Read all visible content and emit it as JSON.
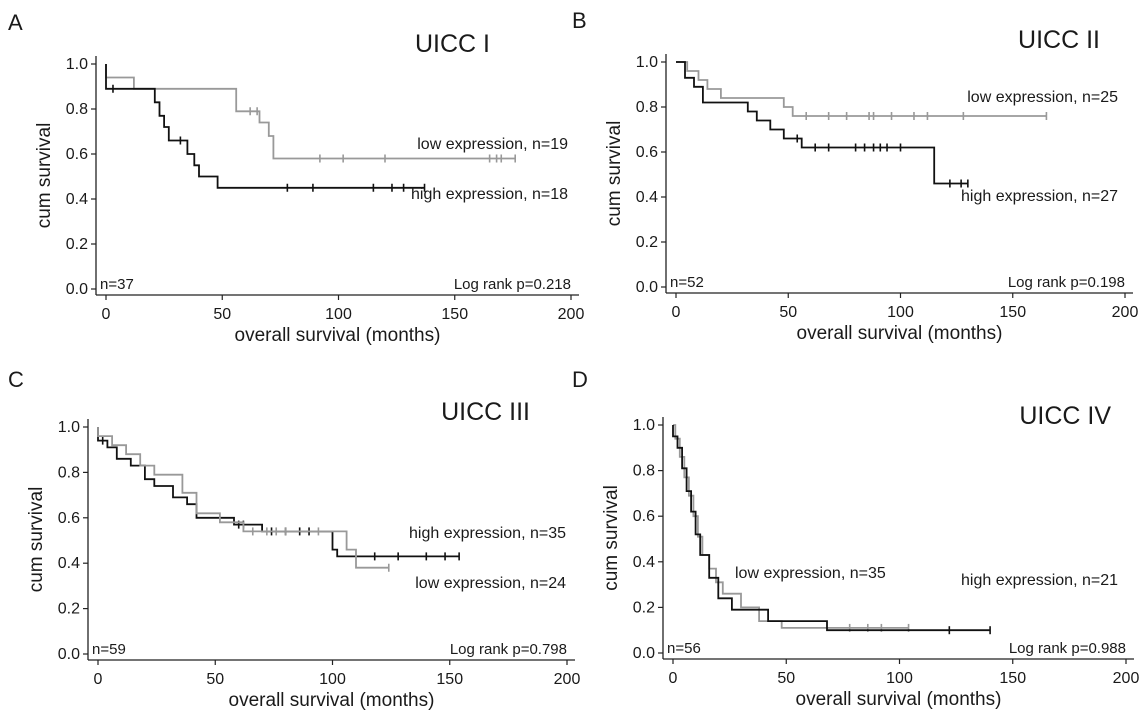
{
  "colors": {
    "high": "#111111",
    "low": "#999999",
    "axis": "#222222"
  },
  "chart_data": [
    {
      "type": "line",
      "panel": "A",
      "title": "UICC I",
      "xlabel": "overall survival (months)",
      "ylabel": "cum survival",
      "xlim": [
        0,
        200
      ],
      "ylim": [
        0,
        1
      ],
      "x_ticks": [
        0,
        50,
        100,
        150,
        200
      ],
      "x_tick_labels": [
        "0",
        "50",
        "100",
        "150",
        "200"
      ],
      "y_ticks": [
        0,
        0.2,
        0.4,
        0.6,
        0.8,
        1.0
      ],
      "y_tick_labels": [
        "0.0",
        "0.2",
        "0.4",
        "0.6",
        "0.8",
        "1.0"
      ],
      "grid": false,
      "n_label": "n=37",
      "logrank_label": "Log rank p=0.218",
      "series": [
        {
          "name": "low expression, n=19",
          "group": "low",
          "steps": [
            [
              0,
              1.0
            ],
            [
              0,
              0.94
            ],
            [
              12,
              0.94
            ],
            [
              12,
              0.89
            ],
            [
              56,
              0.89
            ],
            [
              56,
              0.79
            ],
            [
              66,
              0.79
            ],
            [
              66,
              0.74
            ],
            [
              70,
              0.74
            ],
            [
              70,
              0.68
            ],
            [
              72,
              0.68
            ],
            [
              72,
              0.58
            ],
            [
              176,
              0.58
            ]
          ],
          "censored": [
            [
              62,
              0.79
            ],
            [
              65,
              0.79
            ],
            [
              92,
              0.58
            ],
            [
              102,
              0.58
            ],
            [
              120,
              0.58
            ],
            [
              165,
              0.58
            ],
            [
              168,
              0.58
            ],
            [
              170,
              0.58
            ],
            [
              176,
              0.58
            ]
          ]
        },
        {
          "name": "high expression, n=18",
          "group": "high",
          "steps": [
            [
              0,
              1.0
            ],
            [
              0,
              0.89
            ],
            [
              21,
              0.89
            ],
            [
              21,
              0.83
            ],
            [
              23,
              0.83
            ],
            [
              23,
              0.77
            ],
            [
              25,
              0.77
            ],
            [
              25,
              0.72
            ],
            [
              27,
              0.72
            ],
            [
              27,
              0.66
            ],
            [
              35,
              0.66
            ],
            [
              35,
              0.6
            ],
            [
              38,
              0.6
            ],
            [
              38,
              0.55
            ],
            [
              40,
              0.55
            ],
            [
              40,
              0.5
            ],
            [
              48,
              0.5
            ],
            [
              48,
              0.45
            ],
            [
              137,
              0.45
            ]
          ],
          "censored": [
            [
              3,
              0.89
            ],
            [
              32,
              0.66
            ],
            [
              78,
              0.45
            ],
            [
              89,
              0.45
            ],
            [
              115,
              0.45
            ],
            [
              123,
              0.45
            ],
            [
              128,
              0.45
            ],
            [
              137,
              0.45
            ]
          ]
        }
      ]
    },
    {
      "type": "line",
      "panel": "B",
      "title": "UICC II",
      "xlabel": "overall survival (months)",
      "ylabel": "cum survival",
      "xlim": [
        0,
        200
      ],
      "ylim": [
        0,
        1
      ],
      "x_ticks": [
        0,
        50,
        100,
        150,
        200
      ],
      "x_tick_labels": [
        "0",
        "50",
        "100",
        "150",
        "200"
      ],
      "y_ticks": [
        0,
        0.2,
        0.4,
        0.6,
        0.8,
        1.0
      ],
      "y_tick_labels": [
        "0.0",
        "0.2",
        "0.4",
        "0.6",
        "0.8",
        "1.0"
      ],
      "grid": false,
      "n_label": "n=52",
      "logrank_label": "Log rank p=0.198",
      "series": [
        {
          "name": "low expression, n=25",
          "group": "low",
          "steps": [
            [
              0,
              1.0
            ],
            [
              5,
              1.0
            ],
            [
              5,
              0.96
            ],
            [
              10,
              0.96
            ],
            [
              10,
              0.92
            ],
            [
              14,
              0.92
            ],
            [
              14,
              0.88
            ],
            [
              20,
              0.88
            ],
            [
              20,
              0.84
            ],
            [
              48,
              0.84
            ],
            [
              48,
              0.8
            ],
            [
              52,
              0.8
            ],
            [
              52,
              0.76
            ],
            [
              165,
              0.76
            ]
          ],
          "censored": [
            [
              58,
              0.76
            ],
            [
              68,
              0.76
            ],
            [
              76,
              0.76
            ],
            [
              86,
              0.76
            ],
            [
              88,
              0.76
            ],
            [
              96,
              0.76
            ],
            [
              106,
              0.76
            ],
            [
              112,
              0.76
            ],
            [
              128,
              0.76
            ],
            [
              165,
              0.76
            ]
          ]
        },
        {
          "name": "high expression, n=27",
          "group": "high",
          "steps": [
            [
              0,
              1.0
            ],
            [
              4,
              1.0
            ],
            [
              4,
              0.93
            ],
            [
              8,
              0.93
            ],
            [
              8,
              0.89
            ],
            [
              12,
              0.89
            ],
            [
              12,
              0.82
            ],
            [
              32,
              0.82
            ],
            [
              32,
              0.78
            ],
            [
              36,
              0.78
            ],
            [
              36,
              0.74
            ],
            [
              42,
              0.74
            ],
            [
              42,
              0.7
            ],
            [
              48,
              0.7
            ],
            [
              48,
              0.66
            ],
            [
              56,
              0.66
            ],
            [
              56,
              0.62
            ],
            [
              115,
              0.62
            ],
            [
              115,
              0.46
            ],
            [
              130,
              0.46
            ]
          ],
          "censored": [
            [
              54,
              0.66
            ],
            [
              62,
              0.62
            ],
            [
              68,
              0.62
            ],
            [
              80,
              0.62
            ],
            [
              84,
              0.62
            ],
            [
              88,
              0.62
            ],
            [
              91,
              0.62
            ],
            [
              94,
              0.62
            ],
            [
              100,
              0.62
            ],
            [
              122,
              0.46
            ],
            [
              127,
              0.46
            ],
            [
              130,
              0.46
            ]
          ]
        }
      ]
    },
    {
      "type": "line",
      "panel": "C",
      "title": "UICC III",
      "xlabel": "overall survival (months)",
      "ylabel": "cum survival",
      "xlim": [
        0,
        200
      ],
      "ylim": [
        0,
        1
      ],
      "x_ticks": [
        0,
        50,
        100,
        150,
        200
      ],
      "x_tick_labels": [
        "0",
        "50",
        "100",
        "150",
        "200"
      ],
      "y_ticks": [
        0,
        0.2,
        0.4,
        0.6,
        0.8,
        1.0
      ],
      "y_tick_labels": [
        "0.0",
        "0.2",
        "0.4",
        "0.6",
        "0.8",
        "1.0"
      ],
      "grid": false,
      "n_label": "n=59",
      "logrank_label": "Log rank p=0.798",
      "series": [
        {
          "name": "high expression, n=35",
          "group": "high",
          "steps": [
            [
              0,
              1.0
            ],
            [
              0,
              0.94
            ],
            [
              4,
              0.94
            ],
            [
              4,
              0.91
            ],
            [
              8,
              0.91
            ],
            [
              8,
              0.86
            ],
            [
              14,
              0.86
            ],
            [
              14,
              0.83
            ],
            [
              20,
              0.83
            ],
            [
              20,
              0.77
            ],
            [
              24,
              0.77
            ],
            [
              24,
              0.74
            ],
            [
              32,
              0.74
            ],
            [
              32,
              0.69
            ],
            [
              38,
              0.69
            ],
            [
              38,
              0.66
            ],
            [
              42,
              0.66
            ],
            [
              42,
              0.6
            ],
            [
              58,
              0.6
            ],
            [
              58,
              0.57
            ],
            [
              70,
              0.57
            ],
            [
              70,
              0.54
            ],
            [
              100,
              0.54
            ],
            [
              100,
              0.46
            ],
            [
              102,
              0.46
            ],
            [
              102,
              0.43
            ],
            [
              154,
              0.43
            ]
          ],
          "censored": [
            [
              2,
              0.94
            ],
            [
              60,
              0.57
            ],
            [
              62,
              0.57
            ],
            [
              74,
              0.54
            ],
            [
              80,
              0.54
            ],
            [
              86,
              0.54
            ],
            [
              90,
              0.54
            ],
            [
              118,
              0.43
            ],
            [
              128,
              0.43
            ],
            [
              140,
              0.43
            ],
            [
              148,
              0.43
            ],
            [
              154,
              0.43
            ]
          ]
        },
        {
          "name": "low expression, n=24",
          "group": "low",
          "steps": [
            [
              0,
              1.0
            ],
            [
              0,
              0.96
            ],
            [
              6,
              0.96
            ],
            [
              6,
              0.92
            ],
            [
              12,
              0.92
            ],
            [
              12,
              0.88
            ],
            [
              18,
              0.88
            ],
            [
              18,
              0.83
            ],
            [
              24,
              0.83
            ],
            [
              24,
              0.79
            ],
            [
              36,
              0.79
            ],
            [
              36,
              0.71
            ],
            [
              42,
              0.71
            ],
            [
              42,
              0.62
            ],
            [
              52,
              0.62
            ],
            [
              52,
              0.58
            ],
            [
              62,
              0.58
            ],
            [
              62,
              0.54
            ],
            [
              106,
              0.54
            ],
            [
              106,
              0.46
            ],
            [
              110,
              0.46
            ],
            [
              110,
              0.38
            ],
            [
              124,
              0.38
            ]
          ],
          "censored": [
            [
              66,
              0.54
            ],
            [
              72,
              0.54
            ],
            [
              76,
              0.54
            ],
            [
              80,
              0.54
            ],
            [
              94,
              0.54
            ],
            [
              124,
              0.38
            ]
          ]
        }
      ]
    },
    {
      "type": "line",
      "panel": "D",
      "title": "UICC IV",
      "xlabel": "overall survival (months)",
      "ylabel": "cum survival",
      "xlim": [
        0,
        200
      ],
      "ylim": [
        0,
        1
      ],
      "x_ticks": [
        0,
        50,
        100,
        150,
        200
      ],
      "x_tick_labels": [
        "0",
        "50",
        "100",
        "150",
        "200"
      ],
      "y_ticks": [
        0,
        0.2,
        0.4,
        0.6,
        0.8,
        1.0
      ],
      "y_tick_labels": [
        "0.0",
        "0.2",
        "0.4",
        "0.6",
        "0.8",
        "1.0"
      ],
      "grid": false,
      "n_label": "n=56",
      "logrank_label": "Log rank p=0.988",
      "series": [
        {
          "name": "low expression, n=35",
          "group": "low",
          "steps": [
            [
              0,
              1.0
            ],
            [
              1,
              1.0
            ],
            [
              1,
              0.94
            ],
            [
              3,
              0.94
            ],
            [
              3,
              0.86
            ],
            [
              5,
              0.86
            ],
            [
              5,
              0.77
            ],
            [
              7,
              0.77
            ],
            [
              7,
              0.69
            ],
            [
              9,
              0.69
            ],
            [
              9,
              0.6
            ],
            [
              11,
              0.6
            ],
            [
              11,
              0.51
            ],
            [
              13,
              0.51
            ],
            [
              13,
              0.43
            ],
            [
              16,
              0.43
            ],
            [
              16,
              0.37
            ],
            [
              19,
              0.37
            ],
            [
              19,
              0.31
            ],
            [
              22,
              0.31
            ],
            [
              22,
              0.26
            ],
            [
              30,
              0.26
            ],
            [
              30,
              0.2
            ],
            [
              38,
              0.2
            ],
            [
              38,
              0.14
            ],
            [
              48,
              0.14
            ],
            [
              48,
              0.11
            ],
            [
              104,
              0.11
            ]
          ],
          "censored": [
            [
              78,
              0.11
            ],
            [
              86,
              0.11
            ],
            [
              92,
              0.11
            ],
            [
              104,
              0.11
            ]
          ]
        },
        {
          "name": "high expression, n=21",
          "group": "high",
          "steps": [
            [
              0,
              1.0
            ],
            [
              0,
              0.95
            ],
            [
              2,
              0.95
            ],
            [
              2,
              0.9
            ],
            [
              4,
              0.9
            ],
            [
              4,
              0.81
            ],
            [
              6,
              0.81
            ],
            [
              6,
              0.71
            ],
            [
              8,
              0.71
            ],
            [
              8,
              0.62
            ],
            [
              10,
              0.62
            ],
            [
              10,
              0.52
            ],
            [
              12,
              0.52
            ],
            [
              12,
              0.43
            ],
            [
              16,
              0.43
            ],
            [
              16,
              0.33
            ],
            [
              20,
              0.33
            ],
            [
              20,
              0.24
            ],
            [
              26,
              0.24
            ],
            [
              26,
              0.19
            ],
            [
              42,
              0.19
            ],
            [
              42,
              0.14
            ],
            [
              68,
              0.14
            ],
            [
              68,
              0.1
            ],
            [
              140,
              0.1
            ]
          ],
          "censored": [
            [
              122,
              0.1
            ],
            [
              140,
              0.1
            ]
          ]
        }
      ]
    }
  ]
}
